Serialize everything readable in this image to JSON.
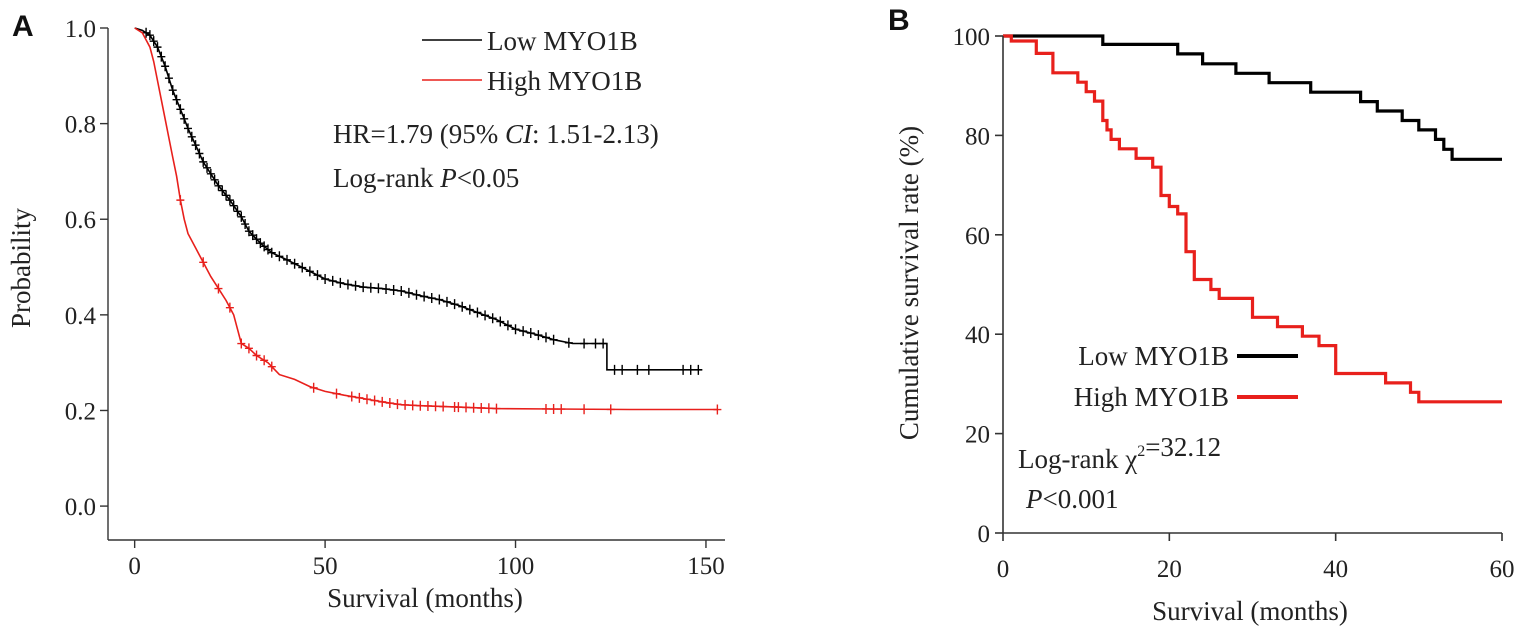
{
  "colors": {
    "low": "#000000",
    "high": "#e8201c",
    "axis": "#333333"
  },
  "chart_data": [
    {
      "panel": "A",
      "type": "line",
      "step": false,
      "xlabel": "Survival (months)",
      "ylabel": "Probability",
      "xlim": [
        -7,
        155
      ],
      "ylim": [
        -0.05,
        1.0
      ],
      "xticks": [
        0,
        50,
        100,
        150
      ],
      "yticks": [
        0.0,
        0.2,
        0.4,
        0.6,
        0.8,
        1.0
      ],
      "ytick_labels": [
        "0.0",
        "0.2",
        "0.4",
        "0.6",
        "0.8",
        "1.0"
      ],
      "legend": {
        "position": "top-right",
        "entries": [
          "Low MYO1B",
          "High MYO1B"
        ]
      },
      "annotations": [
        {
          "parts": [
            {
              "t": "HR=1.79 (95% "
            },
            {
              "t": "CI",
              "i": true
            },
            {
              "t": ": 1.51-2.13)"
            }
          ]
        },
        {
          "parts": [
            {
              "t": "Log-rank "
            },
            {
              "t": "P",
              "i": true
            },
            {
              "t": "<0.05"
            }
          ]
        }
      ],
      "series": [
        {
          "name": "Low MYO1B",
          "color_key": "low",
          "points": [
            [
              0,
              1.0
            ],
            [
              2,
              0.995
            ],
            [
              4,
              0.985
            ],
            [
              6,
              0.96
            ],
            [
              8,
              0.92
            ],
            [
              10,
              0.87
            ],
            [
              12,
              0.83
            ],
            [
              14,
              0.79
            ],
            [
              16,
              0.755
            ],
            [
              18,
              0.72
            ],
            [
              20,
              0.695
            ],
            [
              22,
              0.67
            ],
            [
              25,
              0.64
            ],
            [
              28,
              0.605
            ],
            [
              30,
              0.575
            ],
            [
              33,
              0.55
            ],
            [
              36,
              0.53
            ],
            [
              40,
              0.515
            ],
            [
              45,
              0.495
            ],
            [
              50,
              0.475
            ],
            [
              55,
              0.465
            ],
            [
              60,
              0.458
            ],
            [
              65,
              0.455
            ],
            [
              70,
              0.45
            ],
            [
              75,
              0.44
            ],
            [
              80,
              0.432
            ],
            [
              85,
              0.42
            ],
            [
              90,
              0.405
            ],
            [
              95,
              0.39
            ],
            [
              100,
              0.37
            ],
            [
              105,
              0.36
            ],
            [
              110,
              0.348
            ],
            [
              115,
              0.34
            ],
            [
              120,
              0.34
            ],
            [
              124,
              0.34
            ],
            [
              124,
              0.285
            ],
            [
              128,
              0.285
            ],
            [
              140,
              0.285
            ],
            [
              149,
              0.285
            ]
          ],
          "censor_x": [
            3,
            4,
            5,
            6,
            7,
            8,
            9,
            10,
            11,
            12,
            13,
            14,
            15,
            16,
            17,
            18,
            19,
            20,
            21,
            22,
            23,
            24,
            25,
            26,
            27,
            28,
            29,
            30,
            31,
            32,
            33,
            34,
            35,
            36,
            38,
            40,
            42,
            44,
            46,
            48,
            50,
            52,
            54,
            56,
            58,
            60,
            62,
            64,
            66,
            68,
            70,
            72,
            74,
            76,
            78,
            80,
            82,
            84,
            86,
            88,
            90,
            92,
            94,
            96,
            98,
            100,
            102,
            104,
            106,
            108,
            110,
            114,
            118,
            121,
            123,
            126,
            128,
            132,
            135,
            144,
            146,
            148
          ]
        },
        {
          "name": "High MYO1B",
          "color_key": "high",
          "points": [
            [
              0,
              1.0
            ],
            [
              2,
              0.99
            ],
            [
              4,
              0.96
            ],
            [
              5,
              0.93
            ],
            [
              6,
              0.89
            ],
            [
              7,
              0.85
            ],
            [
              8,
              0.81
            ],
            [
              9,
              0.77
            ],
            [
              10,
              0.73
            ],
            [
              11,
              0.69
            ],
            [
              12,
              0.64
            ],
            [
              13,
              0.6
            ],
            [
              14,
              0.57
            ],
            [
              16,
              0.54
            ],
            [
              18,
              0.51
            ],
            [
              20,
              0.48
            ],
            [
              22,
              0.455
            ],
            [
              24,
              0.43
            ],
            [
              26,
              0.4
            ],
            [
              27,
              0.37
            ],
            [
              28,
              0.34
            ],
            [
              30,
              0.33
            ],
            [
              32,
              0.315
            ],
            [
              35,
              0.3
            ],
            [
              38,
              0.275
            ],
            [
              42,
              0.265
            ],
            [
              46,
              0.25
            ],
            [
              50,
              0.24
            ],
            [
              55,
              0.232
            ],
            [
              60,
              0.225
            ],
            [
              65,
              0.218
            ],
            [
              70,
              0.212
            ],
            [
              75,
              0.21
            ],
            [
              85,
              0.207
            ],
            [
              95,
              0.204
            ],
            [
              110,
              0.203
            ],
            [
              130,
              0.202
            ],
            [
              153,
              0.202
            ]
          ],
          "censor_x": [
            12,
            18,
            22,
            25,
            28,
            30,
            32,
            34,
            36,
            47,
            53,
            57,
            59,
            61,
            63,
            65,
            67,
            69,
            71,
            73,
            75,
            77,
            79,
            81,
            84,
            85,
            87,
            89,
            91,
            93,
            95,
            108,
            110,
            112,
            118,
            125,
            153
          ]
        }
      ]
    },
    {
      "panel": "B",
      "type": "line",
      "step": true,
      "xlabel": "Survival (months)",
      "ylabel": "Cumulative survival rate (%)",
      "xlim": [
        0,
        60
      ],
      "ylim": [
        0,
        100
      ],
      "xticks": [
        0,
        20,
        40,
        60
      ],
      "yticks": [
        0,
        20,
        40,
        60,
        80,
        100
      ],
      "ytick_labels": [
        "0",
        "20",
        "40",
        "60",
        "80",
        "100"
      ],
      "legend": {
        "position": "bottom-left",
        "entries": [
          "Low MYO1B",
          "High MYO1B"
        ]
      },
      "annotations": [
        {
          "parts": [
            {
              "t": "Log-rank χ"
            },
            {
              "t": "2",
              "sup": true
            },
            {
              "t": "=32.12"
            }
          ]
        },
        {
          "parts": [
            {
              "t": "P",
              "i": true
            },
            {
              "t": "<0.001"
            }
          ]
        }
      ],
      "series": [
        {
          "name": "Low MYO1B",
          "color_key": "low",
          "points": [
            [
              0,
              100
            ],
            [
              12,
              100
            ],
            [
              12,
              98.3
            ],
            [
              21,
              98.3
            ],
            [
              21,
              96.4
            ],
            [
              24,
              96.4
            ],
            [
              24,
              94.4
            ],
            [
              28,
              94.4
            ],
            [
              28,
              92.5
            ],
            [
              32,
              92.5
            ],
            [
              32,
              90.6
            ],
            [
              37,
              90.6
            ],
            [
              37,
              88.7
            ],
            [
              43,
              88.7
            ],
            [
              43,
              86.8
            ],
            [
              45,
              86.8
            ],
            [
              45,
              84.9
            ],
            [
              48,
              84.9
            ],
            [
              48,
              83.0
            ],
            [
              50,
              83.0
            ],
            [
              50,
              81.1
            ],
            [
              52,
              81.1
            ],
            [
              52,
              79.2
            ],
            [
              53,
              79.2
            ],
            [
              53,
              77.2
            ],
            [
              54,
              77.2
            ],
            [
              54,
              75.2
            ],
            [
              60,
              75.2
            ]
          ]
        },
        {
          "name": "High MYO1B",
          "color_key": "high",
          "points": [
            [
              0,
              100
            ],
            [
              1,
              100
            ],
            [
              1,
              99
            ],
            [
              4,
              99
            ],
            [
              4,
              96.5
            ],
            [
              6,
              96.5
            ],
            [
              6,
              92.6
            ],
            [
              9,
              92.6
            ],
            [
              9,
              90.7
            ],
            [
              10,
              90.7
            ],
            [
              10,
              88.8
            ],
            [
              11,
              88.8
            ],
            [
              11,
              86.9
            ],
            [
              12,
              86.9
            ],
            [
              12,
              83.0
            ],
            [
              12.5,
              83.0
            ],
            [
              12.5,
              81.1
            ],
            [
              13,
              81.1
            ],
            [
              13,
              79.2
            ],
            [
              14,
              79.2
            ],
            [
              14,
              77.3
            ],
            [
              16,
              77.3
            ],
            [
              16,
              75.4
            ],
            [
              18,
              75.4
            ],
            [
              18,
              73.6
            ],
            [
              19,
              73.6
            ],
            [
              19,
              67.9
            ],
            [
              20,
              67.9
            ],
            [
              20,
              65.7
            ],
            [
              21,
              65.7
            ],
            [
              21,
              64.2
            ],
            [
              22,
              64.2
            ],
            [
              22,
              56.6
            ],
            [
              23,
              56.6
            ],
            [
              23,
              51.0
            ],
            [
              25,
              51.0
            ],
            [
              25,
              49.0
            ],
            [
              26,
              49.0
            ],
            [
              26,
              47.2
            ],
            [
              30,
              47.2
            ],
            [
              30,
              43.4
            ],
            [
              33,
              43.4
            ],
            [
              33,
              41.5
            ],
            [
              36,
              41.5
            ],
            [
              36,
              39.6
            ],
            [
              38,
              39.6
            ],
            [
              38,
              37.7
            ],
            [
              40,
              37.7
            ],
            [
              40,
              32.1
            ],
            [
              46,
              32.1
            ],
            [
              46,
              30.2
            ],
            [
              49,
              30.2
            ],
            [
              49,
              28.3
            ],
            [
              50,
              28.3
            ],
            [
              50,
              26.4
            ],
            [
              60,
              26.4
            ]
          ]
        }
      ]
    }
  ]
}
